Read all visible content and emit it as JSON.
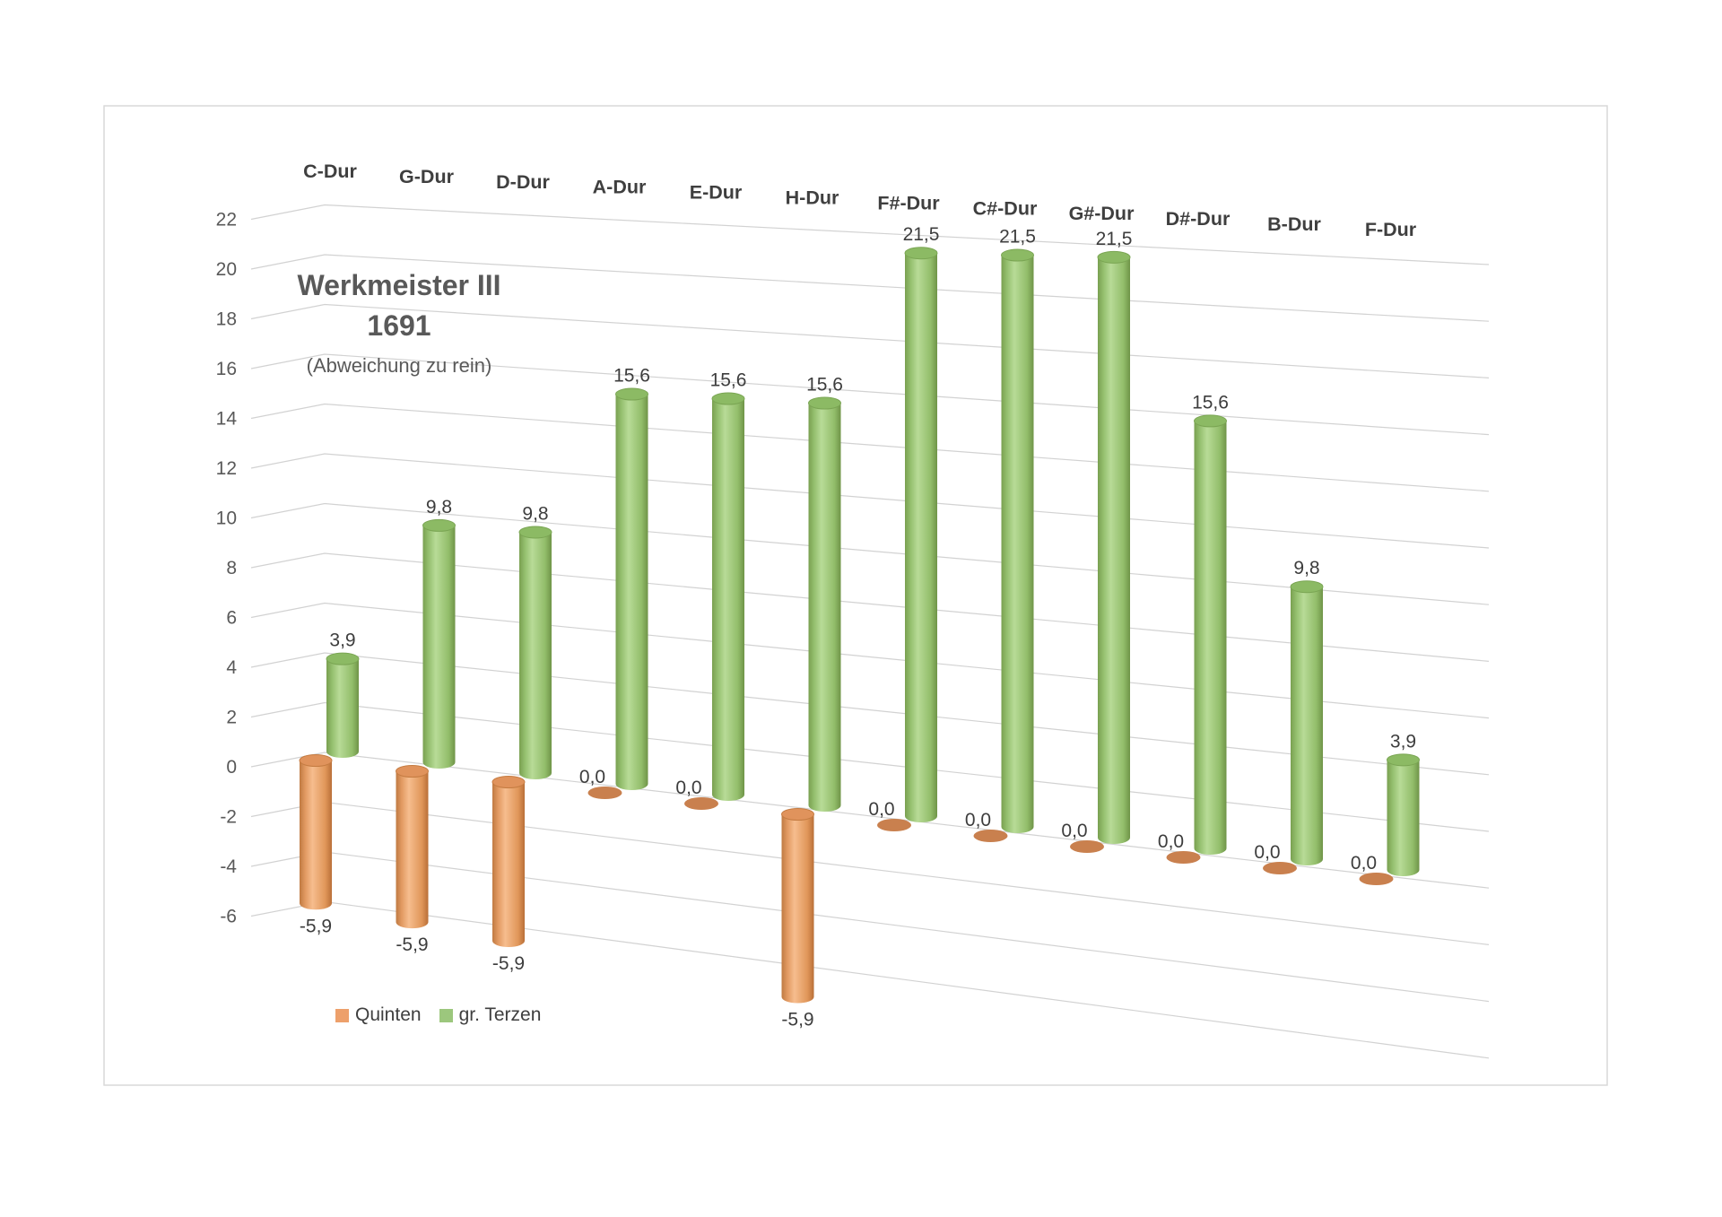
{
  "chart": {
    "title": "Werkmeister III",
    "subtitle": "1691",
    "note": "(Abweichung zu rein)",
    "legend": [
      {
        "label": "Quinten",
        "color": "#EDA06B"
      },
      {
        "label": "gr. Terzen",
        "color": "#9CC77D"
      }
    ]
  },
  "chart_data": {
    "type": "bar",
    "style": "3d-cylinder",
    "title": "Werkmeister III 1691 (Abweichung zu rein)",
    "categories": [
      "C-Dur",
      "G-Dur",
      "D-Dur",
      "A-Dur",
      "E-Dur",
      "H-Dur",
      "F#-Dur",
      "C#-Dur",
      "G#-Dur",
      "D#-Dur",
      "B-Dur",
      "F-Dur"
    ],
    "series": [
      {
        "name": "Quinten",
        "values": [
          -5.9,
          -5.9,
          -5.9,
          0,
          0,
          -5.9,
          0,
          0,
          0,
          0,
          0,
          0
        ],
        "labels": [
          "-5,9",
          "-5,9",
          "-5,9",
          "0,0",
          "0,0",
          "-5,9",
          "0,0",
          "0,0",
          "0,0",
          "0,0",
          "0,0",
          "0,0"
        ]
      },
      {
        "name": "gr. Terzen",
        "values": [
          3.9,
          9.8,
          9.8,
          15.6,
          15.6,
          15.6,
          21.5,
          21.5,
          21.5,
          15.6,
          9.8,
          3.9
        ],
        "labels": [
          "3,9",
          "9,8",
          "9,8",
          "15,6",
          "15,6",
          "15,6",
          "21,5",
          "21,5",
          "21,5",
          "15,6",
          "9,8",
          "3,9"
        ]
      }
    ],
    "ylim": [
      -6,
      22
    ],
    "ytick_step": 2,
    "yticks": [
      "22",
      "20",
      "18",
      "16",
      "14",
      "12",
      "10",
      "8",
      "6",
      "4",
      "2",
      "0",
      "-2",
      "-4",
      "-6"
    ],
    "grid": true,
    "legend_position": "bottom-left"
  },
  "colors": {
    "orange_body": [
      "#c07a42",
      "#e29a62",
      "#f6bd8e",
      "#e09659",
      "#b96f38"
    ],
    "orange_cap": "#e0935c",
    "orange_cap_stroke": "#c57c42",
    "orange_disc": "#c9804e",
    "green_body": [
      "#79a050",
      "#95c06f",
      "#b8db97",
      "#92bd6a",
      "#6f9448"
    ],
    "green_cap": "#8cba64",
    "green_cap_stroke": "#7aa553",
    "grid_line": "#d2d2d2",
    "tick_text": "#595959",
    "data_label_text": "#3d3d3d",
    "category_text": "#3f3f3f",
    "chart_border": "#d9d9d9"
  }
}
